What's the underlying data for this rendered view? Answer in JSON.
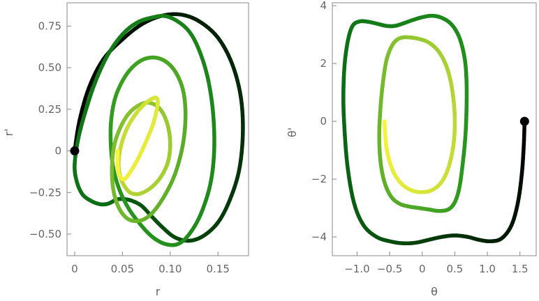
{
  "chart_data": [
    {
      "type": "line",
      "xlabel": "r",
      "ylabel": "r'",
      "xlim": [
        -0.008,
        0.182
      ],
      "ylim": [
        -0.63,
        0.89
      ],
      "xticks": [
        0,
        0.05,
        0.1,
        0.15
      ],
      "xtick_labels": [
        "0",
        "0.05",
        "0.10",
        "0.15"
      ],
      "yticks": [
        -0.5,
        -0.25,
        0,
        0.25,
        0.5,
        0.75
      ],
      "ytick_labels": [
        "−0.50",
        "−0.25",
        "0",
        "0.25",
        "0.50",
        "0.75"
      ],
      "grid": false,
      "start_point": [
        0,
        0
      ],
      "color_gradient": "black to yellow along trajectory",
      "x": [
        0.0,
        0.005,
        0.015,
        0.03,
        0.05,
        0.07,
        0.09,
        0.11,
        0.13,
        0.15,
        0.165,
        0.174,
        0.176,
        0.172,
        0.162,
        0.15,
        0.135,
        0.12,
        0.105,
        0.092,
        0.08,
        0.07,
        0.06,
        0.052,
        0.046,
        0.041,
        0.038,
        0.033,
        0.026,
        0.017,
        0.008,
        0.002,
        0.0,
        0.004,
        0.012,
        0.022,
        0.035,
        0.05,
        0.065,
        0.08,
        0.095,
        0.11,
        0.122,
        0.132,
        0.14,
        0.145,
        0.146,
        0.142,
        0.132,
        0.12,
        0.108,
        0.095,
        0.082,
        0.07,
        0.058,
        0.048,
        0.041,
        0.038,
        0.038,
        0.042,
        0.05,
        0.06,
        0.072,
        0.085,
        0.097,
        0.107,
        0.114,
        0.116,
        0.113,
        0.105,
        0.093,
        0.08,
        0.068,
        0.056,
        0.047,
        0.041,
        0.039,
        0.041,
        0.047,
        0.056,
        0.066,
        0.076,
        0.086,
        0.093,
        0.098,
        0.1,
        0.098,
        0.092,
        0.084,
        0.075,
        0.066,
        0.058,
        0.052,
        0.048,
        0.046,
        0.047,
        0.051,
        0.057,
        0.065,
        0.073,
        0.08,
        0.085,
        0.087,
        0.086,
        0.082,
        0.075,
        0.067,
        0.059,
        0.052,
        0.047,
        0.045,
        0.045
      ],
      "y": [
        0.0,
        0.18,
        0.38,
        0.55,
        0.67,
        0.76,
        0.81,
        0.82,
        0.78,
        0.68,
        0.52,
        0.32,
        0.1,
        -0.12,
        -0.3,
        -0.43,
        -0.51,
        -0.54,
        -0.52,
        -0.46,
        -0.39,
        -0.33,
        -0.3,
        -0.29,
        -0.29,
        -0.3,
        -0.31,
        -0.32,
        -0.32,
        -0.3,
        -0.26,
        -0.18,
        -0.08,
        0.08,
        0.25,
        0.42,
        0.58,
        0.7,
        0.77,
        0.8,
        0.81,
        0.77,
        0.7,
        0.58,
        0.42,
        0.22,
        0.0,
        -0.2,
        -0.38,
        -0.5,
        -0.56,
        -0.56,
        -0.52,
        -0.45,
        -0.36,
        -0.25,
        -0.12,
        0.02,
        0.17,
        0.31,
        0.42,
        0.5,
        0.55,
        0.56,
        0.53,
        0.46,
        0.35,
        0.2,
        0.03,
        -0.14,
        -0.28,
        -0.38,
        -0.42,
        -0.41,
        -0.35,
        -0.25,
        -0.12,
        0.02,
        0.13,
        0.22,
        0.27,
        0.29,
        0.27,
        0.22,
        0.14,
        0.04,
        -0.06,
        -0.14,
        -0.2,
        -0.24,
        -0.26,
        -0.25,
        -0.21,
        -0.16,
        -0.09,
        -0.01,
        0.08,
        0.16,
        0.23,
        0.28,
        0.31,
        0.32,
        0.3,
        0.25,
        0.16,
        0.06,
        -0.04,
        -0.12,
        -0.17,
        -0.15,
        -0.09,
        0.0
      ]
    },
    {
      "type": "line",
      "xlabel": "θ",
      "ylabel": "θ'",
      "xlim": [
        -1.38,
        1.75
      ],
      "ylim": [
        -4.65,
        4.1
      ],
      "xticks": [
        -1.0,
        -0.5,
        0,
        0.5,
        1.0,
        1.5
      ],
      "xtick_labels": [
        "−1.0",
        "−0.5",
        "0",
        "0.5",
        "1.0",
        "1.5"
      ],
      "yticks": [
        -4,
        -2,
        0,
        2,
        4
      ],
      "ytick_labels": [
        "−4",
        "−2",
        "0",
        "2",
        "4"
      ],
      "grid": false,
      "start_point": [
        1.571,
        0
      ],
      "color_gradient": "black to yellow along trajectory",
      "x": [
        1.571,
        1.56,
        1.53,
        1.47,
        1.37,
        1.22,
        1.05,
        0.87,
        0.7,
        0.5,
        0.3,
        0.1,
        -0.1,
        -0.3,
        -0.5,
        -0.7,
        -0.9,
        -1.05,
        -1.15,
        -1.2,
        -1.21,
        -1.19,
        -1.14,
        -1.07,
        -0.97,
        -0.85,
        -0.7,
        -0.55,
        -0.42,
        -0.3,
        -0.15,
        0.0,
        0.15,
        0.3,
        0.45,
        0.57,
        0.65,
        0.68,
        0.68,
        0.66,
        0.62,
        0.57,
        0.5,
        0.4,
        0.25,
        0.1,
        -0.05,
        -0.2,
        -0.35,
        -0.48,
        -0.58,
        -0.64,
        -0.66,
        -0.64,
        -0.6,
        -0.55,
        -0.48,
        -0.4,
        -0.3,
        -0.18,
        -0.05,
        0.08,
        0.2,
        0.3,
        0.38,
        0.44,
        0.48,
        0.5,
        0.49,
        0.45,
        0.38,
        0.28,
        0.15,
        0.0,
        -0.15,
        -0.3,
        -0.42,
        -0.5,
        -0.55,
        -0.57,
        -0.58
      ],
      "y": [
        0.0,
        -0.8,
        -1.8,
        -2.8,
        -3.6,
        -4.05,
        -4.15,
        -4.1,
        -4.0,
        -3.95,
        -4.0,
        -4.1,
        -4.2,
        -4.22,
        -4.15,
        -4.0,
        -3.6,
        -2.8,
        -1.5,
        0.0,
        1.0,
        2.0,
        2.8,
        3.3,
        3.45,
        3.45,
        3.38,
        3.3,
        3.3,
        3.38,
        3.5,
        3.6,
        3.65,
        3.58,
        3.35,
        2.9,
        2.2,
        1.4,
        0.4,
        -0.6,
        -1.5,
        -2.3,
        -2.8,
        -3.05,
        -3.1,
        -3.05,
        -3.0,
        -2.95,
        -2.85,
        -2.6,
        -2.1,
        -1.4,
        -0.5,
        0.5,
        1.4,
        2.1,
        2.55,
        2.8,
        2.9,
        2.9,
        2.85,
        2.75,
        2.55,
        2.25,
        1.85,
        1.35,
        0.75,
        0.1,
        -0.6,
        -1.2,
        -1.75,
        -2.15,
        -2.38,
        -2.45,
        -2.4,
        -2.2,
        -1.85,
        -1.4,
        -0.9,
        -0.4,
        0.0
      ]
    }
  ]
}
